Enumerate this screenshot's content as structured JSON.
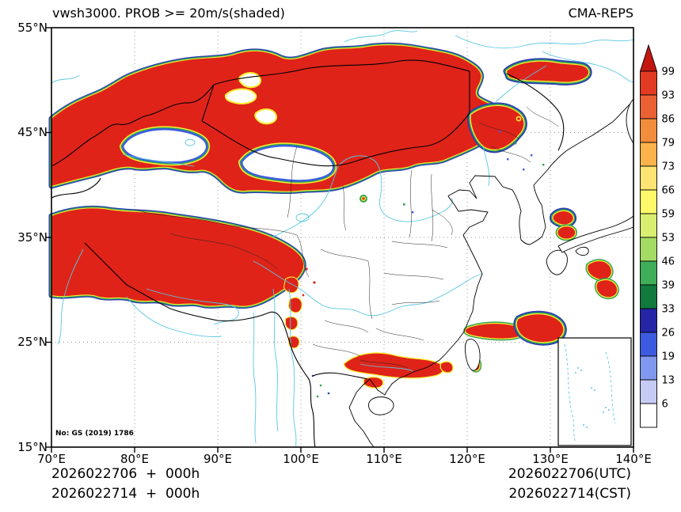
{
  "header": {
    "title": "vwsh3000. PROB >= 20m/s(shaded)",
    "model": "CMA-REPS"
  },
  "axes": {
    "lat": [
      "55°N",
      "45°N",
      "35°N",
      "25°N",
      "15°N"
    ],
    "lon": [
      "70°E",
      "80°E",
      "90°E",
      "100°E",
      "110°E",
      "120°E",
      "130°E",
      "140°E"
    ]
  },
  "colorbar": {
    "labels": [
      "99",
      "93",
      "86",
      "79",
      "73",
      "66",
      "59",
      "53",
      "46",
      "39",
      "33",
      "26",
      "19",
      "13",
      "6"
    ],
    "cells": [
      "#e23b22",
      "#eb6133",
      "#f28d3b",
      "#fbb34a",
      "#fee573",
      "#fdf96a",
      "#d9ef6f",
      "#a4dc63",
      "#3fae58",
      "#117a3d",
      "#2525a8",
      "#3d5be0",
      "#8099ee",
      "#c6cbf5",
      "#ffffff"
    ],
    "over_color": "#c3170f"
  },
  "map": {
    "license_note": "No: GS (2019) 1786",
    "shading_color": "#df2319",
    "fringe_colors": [
      "#f8ee33",
      "#2fa355",
      "#2e3bb4"
    ],
    "river_color": "#57c7e3"
  },
  "footer": {
    "left_line1": "2026022706  +  000h",
    "left_line2": "2026022714  +  000h",
    "right_line1": "2026022706(UTC)",
    "right_line2": "2026022714(CST)"
  }
}
